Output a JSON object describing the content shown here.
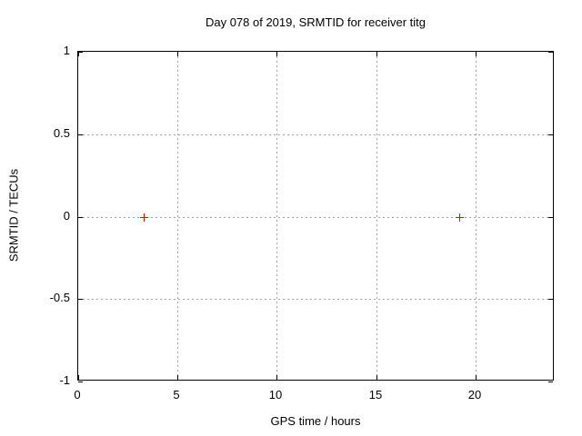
{
  "chart_data": {
    "type": "scatter",
    "title": "Day 078 of 2019, SRMTID for receiver titg",
    "xlabel": "GPS time / hours",
    "ylabel": "SRMTID / TECUs",
    "xlim": [
      0,
      24
    ],
    "ylim": [
      -1,
      1
    ],
    "xticks": {
      "values": [
        0,
        5,
        10,
        15,
        20
      ],
      "labels": [
        "0",
        "5",
        "10",
        "15",
        "20"
      ]
    },
    "yticks": {
      "values": [
        -1,
        -0.5,
        0,
        0.5,
        1
      ],
      "labels": [
        "-1",
        "-0.5",
        "0",
        "0.5",
        "1"
      ]
    },
    "grid": "dashed",
    "legend": "none",
    "series": [
      {
        "name": "SRMTID",
        "marker": "plus",
        "color": "#ff0000",
        "points": [
          [
            3.3,
            0
          ],
          [
            19.2,
            0
          ]
        ]
      }
    ]
  },
  "styles": {
    "axis_color": "#000000",
    "grid_color": "#a0a0a0",
    "text_color": "#000000",
    "background_color": "#ffffff",
    "marker_color": "#ff0000"
  }
}
